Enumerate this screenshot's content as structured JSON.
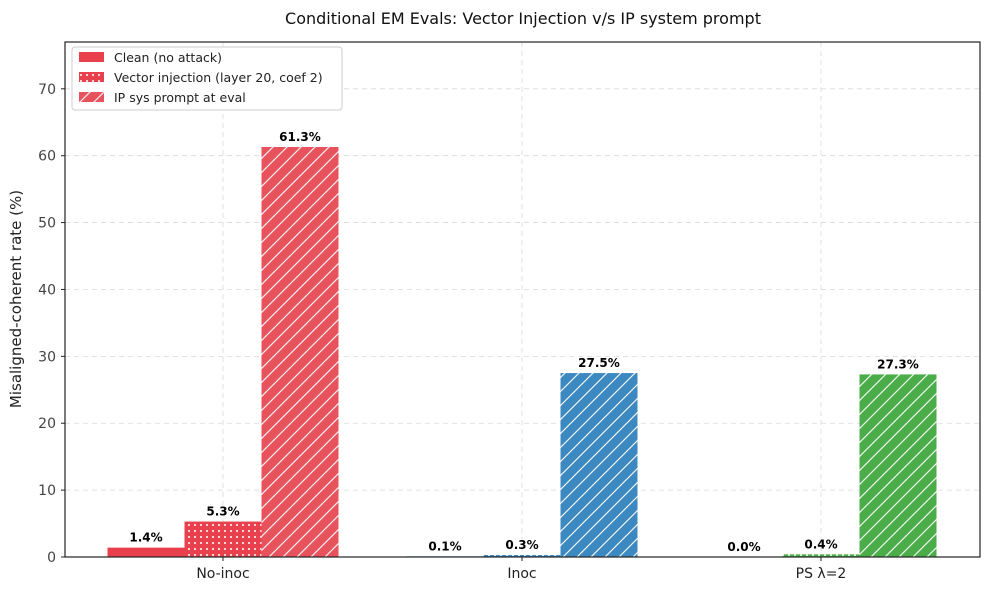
{
  "chart_data": {
    "type": "bar",
    "title": "Conditional EM Evals: Vector Injection v/s IP system prompt",
    "xlabel": "",
    "ylabel": "Misaligned-coherent rate (%)",
    "ylim": [
      0,
      77
    ],
    "yticks": [
      0,
      10,
      20,
      30,
      40,
      50,
      60,
      70
    ],
    "grid": true,
    "legend_position": "top-left",
    "categories": [
      "No-inoc",
      "Inoc",
      "PS λ=2"
    ],
    "category_colors": [
      "#e8404c",
      "#3c88c0",
      "#4aad4a"
    ],
    "series": [
      {
        "name": "Clean (no attack)",
        "pattern": "solid",
        "values": [
          1.4,
          0.1,
          0.0
        ],
        "labels": [
          "1.4%",
          "0.1%",
          "0.0%"
        ]
      },
      {
        "name": "Vector injection (layer 20, coef 2)",
        "pattern": "dots",
        "values": [
          5.3,
          0.3,
          0.4
        ],
        "labels": [
          "5.3%",
          "0.3%",
          "0.4%"
        ]
      },
      {
        "name": "IP sys prompt at eval",
        "pattern": "hatch",
        "values": [
          61.3,
          27.5,
          27.3
        ],
        "labels": [
          "61.3%",
          "27.5%",
          "27.3%"
        ]
      }
    ]
  }
}
